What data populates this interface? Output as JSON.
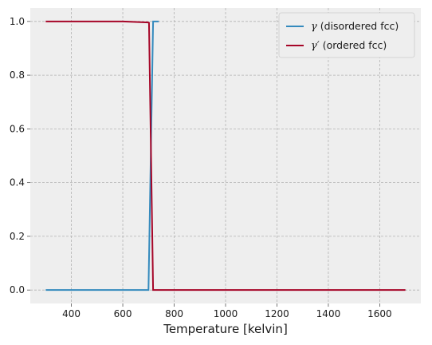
{
  "chart_data": {
    "type": "line",
    "title": "",
    "xlabel": "Temperature [kelvin]",
    "ylabel": "",
    "xlim": [
      240,
      1760
    ],
    "ylim": [
      -0.05,
      1.05
    ],
    "xticks": [
      400,
      600,
      800,
      1000,
      1200,
      1400,
      1600
    ],
    "yticks": [
      0.0,
      0.2,
      0.4,
      0.6,
      0.8,
      1.0
    ],
    "xtick_labels": [
      "400",
      "600",
      "800",
      "1000",
      "1200",
      "1400",
      "1600"
    ],
    "ytick_labels": [
      "0.0",
      "0.2",
      "0.4",
      "0.6",
      "0.8",
      "1.0"
    ],
    "grid": true,
    "legend_position": "top-right",
    "series": [
      {
        "name": "γ (disordered fcc)",
        "legend_symbol": "γ",
        "legend_rest": " (disordered fcc)",
        "color": "#348abd",
        "x": [
          300,
          700,
          718,
          722,
          740
        ],
        "y": [
          0.0,
          0.0,
          1.0,
          1.0,
          1.0
        ]
      },
      {
        "name": "γ′ (ordered fcc)",
        "legend_symbol": "γ′",
        "legend_rest": " (ordered fcc)",
        "color": "#a60628",
        "x": [
          300,
          600,
          700,
          702,
          718,
          1700
        ],
        "y": [
          1.0,
          1.0,
          0.996,
          0.995,
          0.0,
          0.0
        ]
      }
    ]
  }
}
